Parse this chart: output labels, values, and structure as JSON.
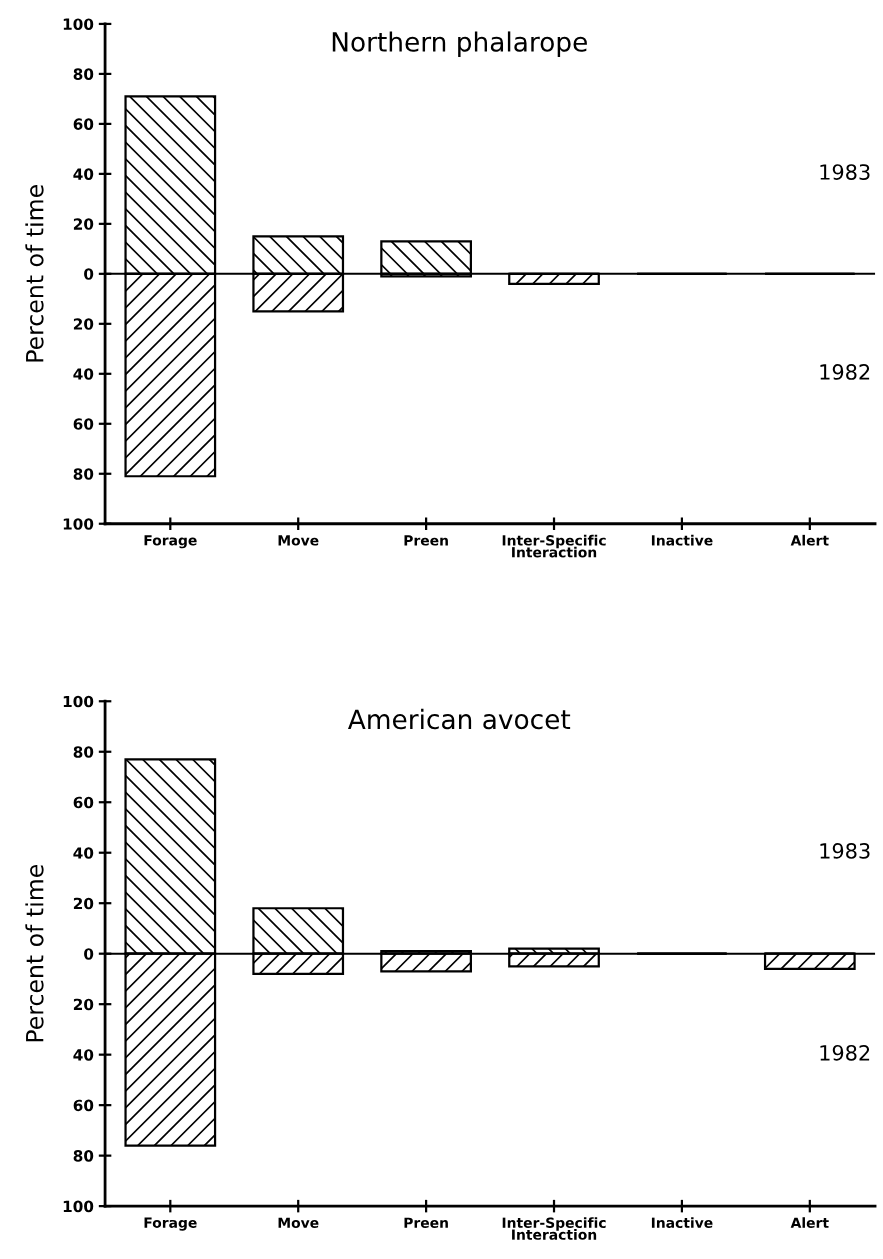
{
  "chart_data": [
    {
      "type": "bar",
      "title": "Northern phalarope",
      "ylabel": "Percent of time",
      "stacked": true,
      "categories": [
        "Forage",
        "Move",
        "Preen",
        "Inter-Specific\nInteraction",
        "Inactive",
        "Alert"
      ],
      "series": [
        {
          "name": "1983",
          "color": "#000000",
          "values": [
            71,
            15,
            13,
            0,
            0,
            0
          ]
        },
        {
          "name": "1982",
          "color": "#000000",
          "values": [
            -81,
            -15,
            -1,
            -4,
            0,
            0
          ]
        }
      ],
      "ylim": [
        -100,
        100
      ],
      "yticks": [
        {
          "value": -100,
          "label": "100"
        },
        {
          "value": -80,
          "label": "80"
        },
        {
          "value": -60,
          "label": "60"
        },
        {
          "value": -40,
          "label": "40"
        },
        {
          "value": -20,
          "label": "20"
        },
        0,
        20,
        40,
        60,
        80,
        100
      ],
      "ref_lines": [
        {
          "axis": "y",
          "value": 0,
          "color": "#000000"
        }
      ],
      "grid": false,
      "legend": false
    },
    {
      "type": "bar",
      "title": "American avocet",
      "ylabel": "Percent of time",
      "stacked": true,
      "categories": [
        "Forage",
        "Move",
        "Preen",
        "Inter-Specific\nInteraction",
        "Inactive",
        "Alert"
      ],
      "series": [
        {
          "name": "1983",
          "color": "#000000",
          "values": [
            77,
            18,
            1,
            2,
            0,
            0
          ]
        },
        {
          "name": "1982",
          "color": "#000000",
          "values": [
            -76,
            -8,
            -7,
            -5,
            0,
            -6
          ]
        }
      ],
      "ylim": [
        -100,
        100
      ],
      "yticks": [
        {
          "value": -100,
          "label": "100"
        },
        {
          "value": -80,
          "label": "80"
        },
        {
          "value": -60,
          "label": "60"
        },
        {
          "value": -40,
          "label": "40"
        },
        {
          "value": -20,
          "label": "20"
        },
        0,
        20,
        40,
        60,
        80,
        100
      ],
      "ref_lines": [
        {
          "axis": "y",
          "value": 0,
          "color": "#000000"
        }
      ],
      "grid": false,
      "legend": false
    }
  ]
}
